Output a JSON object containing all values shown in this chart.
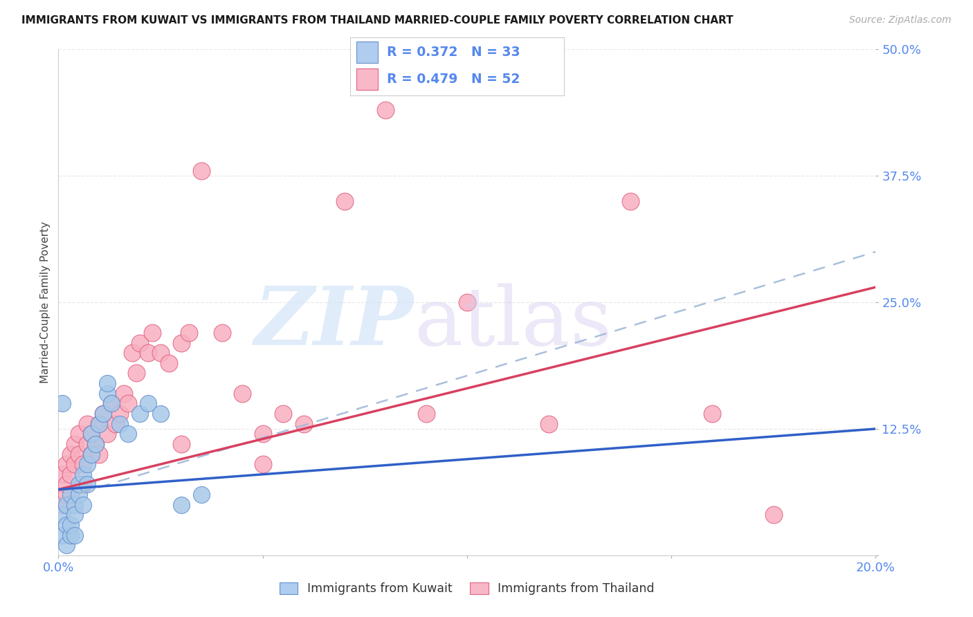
{
  "title": "IMMIGRANTS FROM KUWAIT VS IMMIGRANTS FROM THAILAND MARRIED-COUPLE FAMILY POVERTY CORRELATION CHART",
  "source": "Source: ZipAtlas.com",
  "ylabel": "Married-Couple Family Poverty",
  "xlim": [
    0.0,
    0.2
  ],
  "ylim": [
    0.0,
    0.5
  ],
  "kuwait_R": 0.372,
  "kuwait_N": 33,
  "thailand_R": 0.479,
  "thailand_N": 52,
  "kuwait_dot_color": "#a8c8e8",
  "thailand_dot_color": "#f8b0c0",
  "kuwait_dot_edge": "#6090d0",
  "thailand_dot_edge": "#e06080",
  "kuwait_solid_line_color": "#3060c8",
  "kuwait_dash_line_color": "#a0b8d8",
  "thailand_line_color": "#d84060",
  "tick_color": "#5588ee",
  "grid_color": "#e8e8e8",
  "grid_style": "--",
  "background_color": "#ffffff",
  "ytick_vals": [
    0.0,
    0.125,
    0.25,
    0.375,
    0.5
  ],
  "ytick_labels": [
    "",
    "12.5%",
    "25.0%",
    "37.5%",
    "50.0%"
  ],
  "xtick_vals": [
    0.0,
    0.05,
    0.1,
    0.15,
    0.2
  ],
  "xtick_labels": [
    "0.0%",
    "",
    "",
    "",
    "20.0%"
  ],
  "legend_kuwait_color": "#b0ccee",
  "legend_kuwait_edge": "#6090d0",
  "legend_thailand_color": "#f8b8c8",
  "legend_thailand_edge": "#e06080",
  "bottom_legend_kuwait": "Immigrants from Kuwait",
  "bottom_legend_thailand": "Immigrants from Thailand",
  "kuwait_x": [
    0.001,
    0.001,
    0.002,
    0.002,
    0.002,
    0.003,
    0.003,
    0.003,
    0.004,
    0.004,
    0.005,
    0.005,
    0.006,
    0.006,
    0.007,
    0.007,
    0.008,
    0.008,
    0.009,
    0.01,
    0.011,
    0.012,
    0.013,
    0.015,
    0.017,
    0.02,
    0.022,
    0.025,
    0.03,
    0.035,
    0.012,
    0.001,
    0.004
  ],
  "kuwait_y": [
    0.04,
    0.02,
    0.03,
    0.05,
    0.01,
    0.02,
    0.03,
    0.06,
    0.05,
    0.04,
    0.06,
    0.07,
    0.05,
    0.08,
    0.07,
    0.09,
    0.1,
    0.12,
    0.11,
    0.13,
    0.14,
    0.16,
    0.15,
    0.13,
    0.12,
    0.14,
    0.15,
    0.14,
    0.05,
    0.06,
    0.17,
    0.15,
    0.02
  ],
  "thailand_x": [
    0.001,
    0.001,
    0.002,
    0.002,
    0.002,
    0.003,
    0.003,
    0.004,
    0.004,
    0.005,
    0.005,
    0.006,
    0.006,
    0.007,
    0.007,
    0.008,
    0.008,
    0.009,
    0.01,
    0.01,
    0.011,
    0.012,
    0.013,
    0.014,
    0.015,
    0.016,
    0.017,
    0.018,
    0.019,
    0.02,
    0.022,
    0.023,
    0.025,
    0.027,
    0.03,
    0.032,
    0.035,
    0.04,
    0.045,
    0.05,
    0.055,
    0.06,
    0.07,
    0.08,
    0.09,
    0.1,
    0.12,
    0.14,
    0.16,
    0.175,
    0.03,
    0.05
  ],
  "thailand_y": [
    0.05,
    0.08,
    0.06,
    0.09,
    0.07,
    0.1,
    0.08,
    0.09,
    0.11,
    0.1,
    0.12,
    0.07,
    0.09,
    0.11,
    0.13,
    0.1,
    0.12,
    0.11,
    0.1,
    0.13,
    0.14,
    0.12,
    0.15,
    0.13,
    0.14,
    0.16,
    0.15,
    0.2,
    0.18,
    0.21,
    0.2,
    0.22,
    0.2,
    0.19,
    0.21,
    0.22,
    0.38,
    0.22,
    0.16,
    0.12,
    0.14,
    0.13,
    0.35,
    0.44,
    0.14,
    0.25,
    0.13,
    0.35,
    0.14,
    0.04,
    0.11,
    0.09
  ],
  "watermark_zip_color": "#cce0f5",
  "watermark_atlas_color": "#d8ccee"
}
